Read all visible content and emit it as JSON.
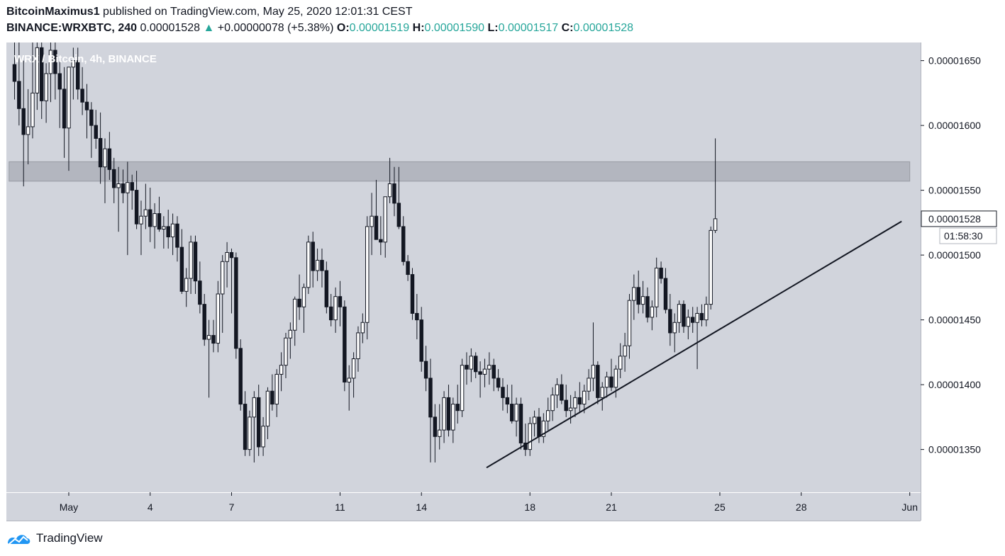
{
  "header": {
    "author": "BitcoinMaximus1",
    "published_text": "published on TradingView.com, May 25, 2020 12:01:31 CEST",
    "symbol": "BINANCE:WRXBTC, 240",
    "last_price": "0.00001528",
    "change_arrow": "▲",
    "change": "+0.00000078 (+5.38%)",
    "open_label": "O:",
    "open": "0.00001519",
    "high_label": "H:",
    "high": "0.00001590",
    "low_label": "L:",
    "low": "0.00001517",
    "close_label": "C:",
    "close": "0.00001528"
  },
  "chart_overlay_label": "WRX / Bitcoin, 4h, BINANCE",
  "price_tag": "0.00001528",
  "countdown": "01:58:30",
  "brand": {
    "name": "TradingView"
  },
  "colors": {
    "background": "#d1d4dc",
    "up_text": "#26a69a",
    "resistance_zone": "#b2b5be",
    "candle_up": "#ffffff",
    "candle_down": "#131722"
  },
  "chart_data": {
    "type": "candlestick",
    "title": "WRX / Bitcoin, 4h, BINANCE",
    "y_ticks": [
      "0.00001650",
      "0.00001600",
      "0.00001550",
      "0.00001500",
      "0.00001450",
      "0.00001400",
      "0.00001350"
    ],
    "y_tick_values": [
      1.65e-05,
      1.6e-05,
      1.55e-05,
      1.5e-05,
      1.45e-05,
      1.4e-05,
      1.35e-05
    ],
    "ylim": [
      1.317e-05,
      1.664e-05
    ],
    "x_ticks": [
      "May",
      "4",
      "7",
      "11",
      "14",
      "18",
      "21",
      "25",
      "28",
      "Jun"
    ],
    "x_tick_days": [
      1,
      4,
      7,
      11,
      14,
      18,
      21,
      25,
      28,
      32
    ],
    "xlim_days": [
      -1.3,
      32.4
    ],
    "x_unit": "days since Apr 30, 2020 00:00",
    "resistance_zone": {
      "low": 1.557e-05,
      "high": 1.572e-05,
      "from_day": -1.2,
      "to_day": 32
    },
    "trendline": {
      "start": {
        "day": 16.4,
        "price": 1.336e-05
      },
      "end": {
        "day": 31.7,
        "price": 1.526e-05
      }
    },
    "last_close": 1.528e-05,
    "candles_ohlc": [
      [
        1647,
        1664,
        1620,
        1634
      ],
      [
        1634,
        1664,
        1600,
        1613
      ],
      [
        1613,
        1650,
        1553,
        1593
      ],
      [
        1593,
        1628,
        1570,
        1599
      ],
      [
        1599,
        1664,
        1590,
        1625
      ],
      [
        1625,
        1664,
        1612,
        1660
      ],
      [
        1660,
        1664,
        1605,
        1619
      ],
      [
        1619,
        1648,
        1602,
        1640
      ],
      [
        1640,
        1664,
        1618,
        1658
      ],
      [
        1658,
        1664,
        1620,
        1640
      ],
      [
        1640,
        1650,
        1598,
        1628
      ],
      [
        1628,
        1645,
        1575,
        1598
      ],
      [
        1598,
        1632,
        1565,
        1645
      ],
      [
        1645,
        1660,
        1620,
        1650
      ],
      [
        1650,
        1660,
        1620,
        1628
      ],
      [
        1628,
        1645,
        1608,
        1618
      ],
      [
        1618,
        1632,
        1590,
        1612
      ],
      [
        1612,
        1618,
        1575,
        1600
      ],
      [
        1600,
        1612,
        1582,
        1590
      ],
      [
        1590,
        1610,
        1555,
        1568
      ],
      [
        1568,
        1590,
        1540,
        1582
      ],
      [
        1582,
        1595,
        1558,
        1566
      ],
      [
        1566,
        1575,
        1540,
        1552
      ],
      [
        1552,
        1568,
        1518,
        1555
      ],
      [
        1555,
        1566,
        1540,
        1548
      ],
      [
        1548,
        1572,
        1500,
        1556
      ],
      [
        1556,
        1562,
        1535,
        1550
      ],
      [
        1550,
        1565,
        1520,
        1524
      ],
      [
        1524,
        1542,
        1500,
        1530
      ],
      [
        1530,
        1555,
        1520,
        1535
      ],
      [
        1535,
        1552,
        1510,
        1522
      ],
      [
        1522,
        1540,
        1505,
        1532
      ],
      [
        1532,
        1545,
        1518,
        1520
      ],
      [
        1520,
        1530,
        1505,
        1522
      ],
      [
        1522,
        1535,
        1505,
        1514
      ],
      [
        1514,
        1532,
        1500,
        1524
      ],
      [
        1524,
        1530,
        1495,
        1506
      ],
      [
        1506,
        1520,
        1470,
        1472
      ],
      [
        1472,
        1490,
        1460,
        1482
      ],
      [
        1482,
        1515,
        1470,
        1510
      ],
      [
        1510,
        1515,
        1470,
        1480
      ],
      [
        1480,
        1495,
        1455,
        1462
      ],
      [
        1462,
        1470,
        1430,
        1435
      ],
      [
        1435,
        1450,
        1390,
        1438
      ],
      [
        1438,
        1450,
        1425,
        1432
      ],
      [
        1432,
        1480,
        1425,
        1470
      ],
      [
        1470,
        1500,
        1440,
        1495
      ],
      [
        1495,
        1510,
        1475,
        1502
      ],
      [
        1502,
        1505,
        1455,
        1498
      ],
      [
        1498,
        1502,
        1420,
        1428
      ],
      [
        1428,
        1435,
        1380,
        1385
      ],
      [
        1385,
        1395,
        1345,
        1350
      ],
      [
        1350,
        1380,
        1345,
        1375
      ],
      [
        1375,
        1395,
        1340,
        1390
      ],
      [
        1390,
        1400,
        1345,
        1352
      ],
      [
        1352,
        1375,
        1345,
        1368
      ],
      [
        1368,
        1398,
        1358,
        1395
      ],
      [
        1395,
        1408,
        1380,
        1385
      ],
      [
        1385,
        1412,
        1375,
        1408
      ],
      [
        1408,
        1425,
        1395,
        1415
      ],
      [
        1415,
        1440,
        1405,
        1436
      ],
      [
        1436,
        1448,
        1420,
        1442
      ],
      [
        1442,
        1468,
        1430,
        1466
      ],
      [
        1466,
        1485,
        1450,
        1460
      ],
      [
        1460,
        1478,
        1440,
        1475
      ],
      [
        1475,
        1515,
        1470,
        1510
      ],
      [
        1510,
        1518,
        1475,
        1488
      ],
      [
        1488,
        1505,
        1480,
        1496
      ],
      [
        1496,
        1505,
        1475,
        1488
      ],
      [
        1488,
        1495,
        1455,
        1460
      ],
      [
        1460,
        1470,
        1445,
        1450
      ],
      [
        1450,
        1475,
        1440,
        1468
      ],
      [
        1468,
        1480,
        1445,
        1460
      ],
      [
        1460,
        1465,
        1395,
        1402
      ],
      [
        1402,
        1415,
        1380,
        1405
      ],
      [
        1405,
        1425,
        1390,
        1420
      ],
      [
        1420,
        1445,
        1410,
        1440
      ],
      [
        1440,
        1455,
        1432,
        1448
      ],
      [
        1448,
        1530,
        1435,
        1522
      ],
      [
        1522,
        1548,
        1500,
        1530
      ],
      [
        1530,
        1558,
        1515,
        1512
      ],
      [
        1512,
        1530,
        1500,
        1510
      ],
      [
        1510,
        1545,
        1498,
        1545
      ],
      [
        1545,
        1575,
        1540,
        1555
      ],
      [
        1555,
        1568,
        1530,
        1540
      ],
      [
        1540,
        1568,
        1520,
        1522
      ],
      [
        1522,
        1530,
        1492,
        1495
      ],
      [
        1495,
        1500,
        1480,
        1485
      ],
      [
        1485,
        1490,
        1450,
        1455
      ],
      [
        1455,
        1470,
        1435,
        1450
      ],
      [
        1450,
        1460,
        1410,
        1418
      ],
      [
        1418,
        1430,
        1395,
        1405
      ],
      [
        1405,
        1420,
        1340,
        1375
      ],
      [
        1375,
        1385,
        1340,
        1360
      ],
      [
        1360,
        1385,
        1350,
        1365
      ],
      [
        1365,
        1395,
        1355,
        1390
      ],
      [
        1390,
        1400,
        1360,
        1365
      ],
      [
        1365,
        1390,
        1355,
        1385
      ],
      [
        1385,
        1400,
        1370,
        1380
      ],
      [
        1380,
        1420,
        1375,
        1415
      ],
      [
        1415,
        1425,
        1400,
        1412
      ],
      [
        1412,
        1428,
        1402,
        1422
      ],
      [
        1422,
        1425,
        1405,
        1410
      ],
      [
        1410,
        1418,
        1390,
        1408
      ],
      [
        1408,
        1420,
        1398,
        1412
      ],
      [
        1412,
        1425,
        1400,
        1415
      ],
      [
        1415,
        1420,
        1395,
        1405
      ],
      [
        1405,
        1412,
        1395,
        1398
      ],
      [
        1398,
        1405,
        1380,
        1390
      ],
      [
        1390,
        1400,
        1378,
        1385
      ],
      [
        1385,
        1400,
        1370,
        1372
      ],
      [
        1372,
        1390,
        1360,
        1385
      ],
      [
        1385,
        1390,
        1350,
        1355
      ],
      [
        1355,
        1370,
        1345,
        1350
      ],
      [
        1350,
        1375,
        1345,
        1370
      ],
      [
        1370,
        1380,
        1360,
        1375
      ],
      [
        1375,
        1382,
        1355,
        1360
      ],
      [
        1360,
        1378,
        1355,
        1372
      ],
      [
        1372,
        1390,
        1365,
        1380
      ],
      [
        1380,
        1398,
        1372,
        1392
      ],
      [
        1392,
        1405,
        1382,
        1400
      ],
      [
        1400,
        1408,
        1385,
        1388
      ],
      [
        1388,
        1400,
        1375,
        1380
      ],
      [
        1380,
        1392,
        1370,
        1382
      ],
      [
        1382,
        1395,
        1375,
        1390
      ],
      [
        1390,
        1402,
        1378,
        1385
      ],
      [
        1385,
        1400,
        1378,
        1395
      ],
      [
        1395,
        1412,
        1388,
        1405
      ],
      [
        1405,
        1448,
        1395,
        1415
      ],
      [
        1415,
        1418,
        1385,
        1390
      ],
      [
        1390,
        1402,
        1380,
        1398
      ],
      [
        1398,
        1410,
        1390,
        1406
      ],
      [
        1406,
        1420,
        1395,
        1398
      ],
      [
        1398,
        1415,
        1390,
        1412
      ],
      [
        1412,
        1432,
        1405,
        1422
      ],
      [
        1422,
        1440,
        1410,
        1430
      ],
      [
        1430,
        1470,
        1420,
        1465
      ],
      [
        1465,
        1485,
        1450,
        1475
      ],
      [
        1475,
        1488,
        1455,
        1462
      ],
      [
        1462,
        1480,
        1455,
        1468
      ],
      [
        1468,
        1475,
        1448,
        1452
      ],
      [
        1452,
        1465,
        1442,
        1460
      ],
      [
        1460,
        1498,
        1452,
        1490
      ],
      [
        1490,
        1495,
        1478,
        1482
      ],
      [
        1482,
        1490,
        1455,
        1458
      ],
      [
        1458,
        1470,
        1430,
        1440
      ],
      [
        1440,
        1455,
        1425,
        1448
      ],
      [
        1448,
        1465,
        1440,
        1462
      ],
      [
        1462,
        1465,
        1440,
        1445
      ],
      [
        1445,
        1458,
        1435,
        1452
      ],
      [
        1452,
        1460,
        1440,
        1448
      ],
      [
        1448,
        1460,
        1412,
        1455
      ],
      [
        1455,
        1462,
        1445,
        1450
      ],
      [
        1450,
        1468,
        1445,
        1462
      ],
      [
        1462,
        1522,
        1458,
        1519
      ],
      [
        1519,
        1590,
        1517,
        1528
      ]
    ]
  }
}
